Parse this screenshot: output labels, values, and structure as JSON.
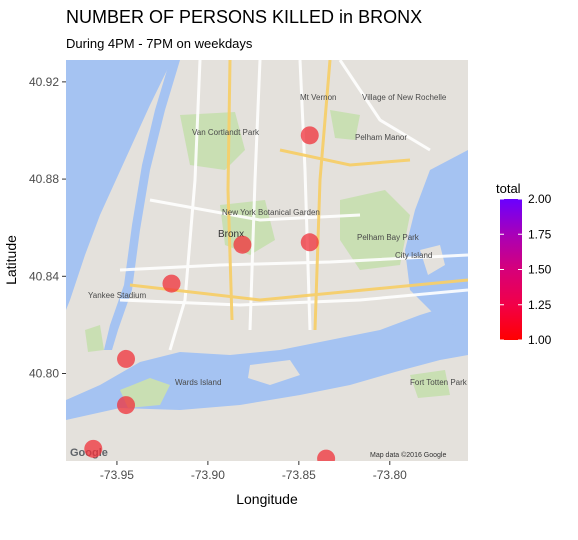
{
  "chart_data": {
    "type": "scatter",
    "title": "NUMBER OF PERSONS KILLED in BRONX",
    "subtitle": "During 4PM - 7PM on weekdays",
    "xlabel": "Longitude",
    "ylabel": "Latitude",
    "xlim": [
      -73.978,
      -73.757
    ],
    "ylim": [
      40.764,
      40.929
    ],
    "x_ticks": [
      -73.95,
      -73.9,
      -73.85,
      -73.8
    ],
    "x_tick_labels": [
      "-73.95",
      "-73.90",
      "-73.85",
      "-73.80"
    ],
    "y_ticks": [
      40.8,
      40.84,
      40.88,
      40.92
    ],
    "y_tick_labels": [
      "40.80",
      "40.84",
      "40.88",
      "40.92"
    ],
    "grid": false,
    "background": "street map basemap",
    "legend": {
      "title": "total",
      "position": "right",
      "min": 1.0,
      "max": 2.0,
      "ticks": [
        "1.00",
        "1.25",
        "1.50",
        "1.75",
        "2.00"
      ],
      "color_low": "#ff0000",
      "color_high": "#6a00ff"
    },
    "marker_color": "#f0303a",
    "marker_opacity": 0.75,
    "points": [
      {
        "lon": -73.844,
        "lat": 40.898,
        "total": 1
      },
      {
        "lon": -73.881,
        "lat": 40.853,
        "total": 1
      },
      {
        "lon": -73.844,
        "lat": 40.854,
        "total": 1
      },
      {
        "lon": -73.92,
        "lat": 40.837,
        "total": 1
      },
      {
        "lon": -73.945,
        "lat": 40.806,
        "total": 1
      },
      {
        "lon": -73.945,
        "lat": 40.787,
        "total": 1
      },
      {
        "lon": -73.963,
        "lat": 40.769,
        "total": 1
      },
      {
        "lon": -73.835,
        "lat": 40.765,
        "total": 1
      }
    ]
  },
  "map_labels": {
    "mt_vernon": "Mt Vernon",
    "new_rochelle": "Village of New Rochelle",
    "van_cortlandt": "Van Cortlandt Park",
    "pelham_manor": "Pelham Manor",
    "ny_botanical": "New York Botanical Garden",
    "bronx": "Bronx",
    "pelham_bay": "Pelham Bay Park",
    "city_island": "City Island",
    "yankee_stadium": "Yankee Stadium",
    "wards_island": "Wards Island",
    "fort_totten": "Fort Totten Park",
    "google": "Google",
    "map_credit": "Map data ©2016 Google"
  }
}
